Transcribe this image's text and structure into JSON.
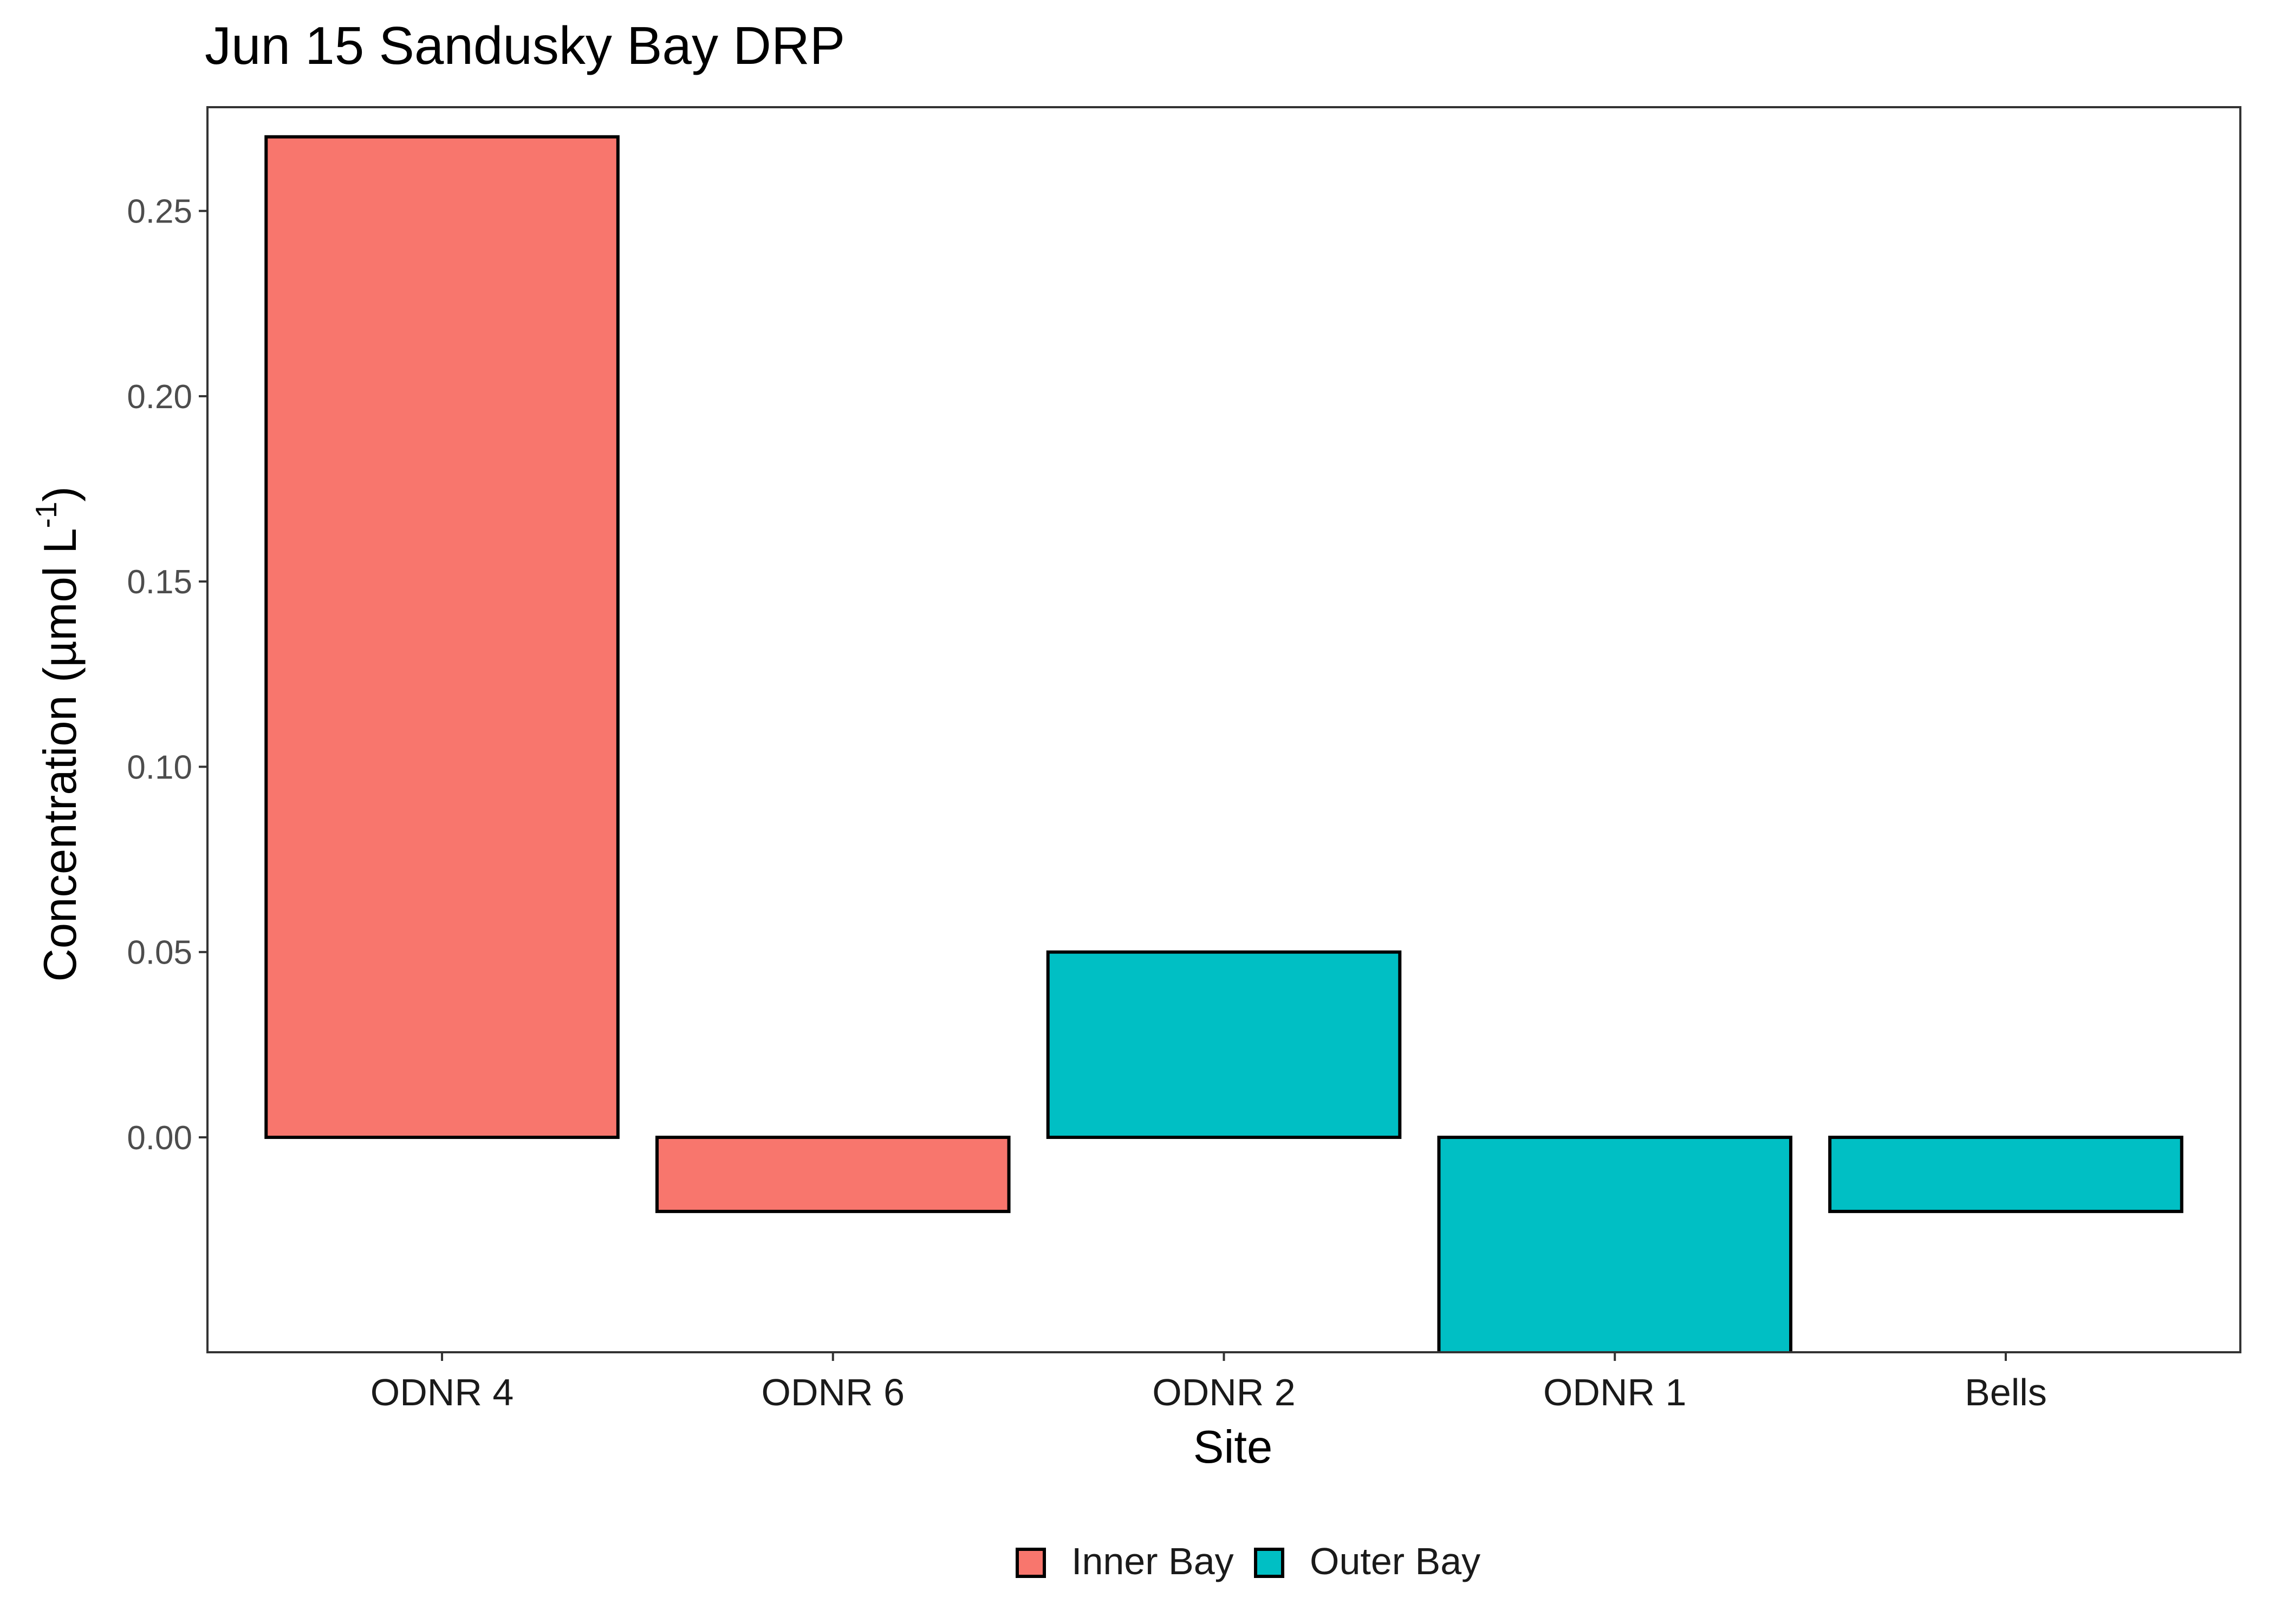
{
  "chart_data": {
    "type": "bar",
    "title": "Jun 15 Sandusky Bay DRP",
    "xlabel": "Site",
    "ylabel": "Concentration (µmol L",
    "ylabel_superscript": "-1",
    "ylabel_close": ")",
    "categories": [
      "ODNR 4",
      "ODNR 6",
      "ODNR 2",
      "ODNR 1",
      "Bells"
    ],
    "values": [
      0.27,
      -0.02,
      0.05,
      -0.06,
      -0.02
    ],
    "groups": [
      "Inner Bay",
      "Inner Bay",
      "Outer Bay",
      "Outer Bay",
      "Outer Bay"
    ],
    "ylim": [
      -0.05,
      0.27
    ],
    "yticks": [
      0.0,
      0.05,
      0.1,
      0.15,
      0.2,
      0.25
    ],
    "ytick_labels": [
      "0.00",
      "0.05",
      "0.10",
      "0.15",
      "0.20",
      "0.25"
    ],
    "grid": false,
    "legend": {
      "position": "bottom",
      "entries": [
        {
          "label": "Inner Bay",
          "color": "#F8766D"
        },
        {
          "label": "Outer Bay",
          "color": "#00BFC4"
        }
      ]
    },
    "colors": {
      "Inner Bay": "#F8766D",
      "Outer Bay": "#00BFC4",
      "bar_outline": "#000000"
    }
  }
}
